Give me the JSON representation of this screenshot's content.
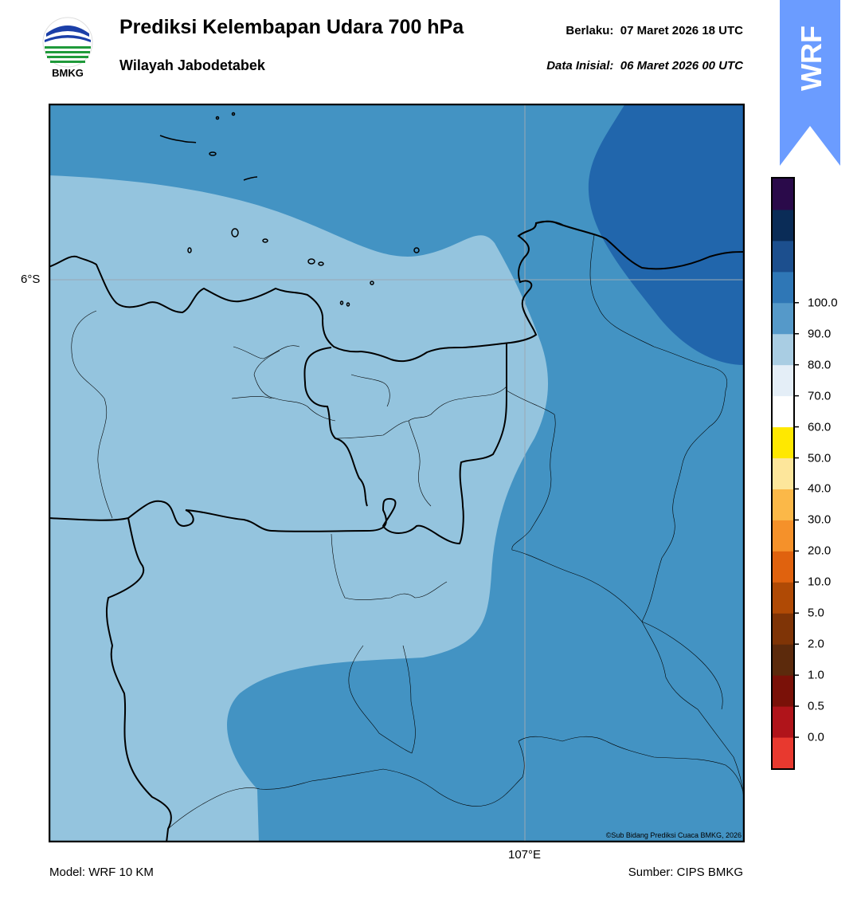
{
  "header": {
    "logo_text": "BMKG",
    "title": "Prediksi Kelembapan Udara 700 hPa",
    "subtitle": "Wilayah Jabodetabek",
    "valid_label": "Berlaku:",
    "valid_time": "07 Maret 2026 18 UTC",
    "init_label": "Data Inisial:",
    "init_time": "06 Maret 2026 00 UTC"
  },
  "badge": {
    "text": "WRF",
    "color": "#6b9cff"
  },
  "map": {
    "lat_label": "6°S",
    "lon_label": "107°E",
    "credit": "©Sub Bidang Prediksi Cuaca BMKG, 2026"
  },
  "footer": {
    "model": "Model: WRF 10 KM",
    "source": "Sumber: CIPS BMKG"
  },
  "colorbar": {
    "colors_bottom_to_top": [
      "#e8392f",
      "#b0141a",
      "#7a1108",
      "#5c2a0c",
      "#7f3406",
      "#b04a05",
      "#e0620e",
      "#f5912a",
      "#fbb848",
      "#fde69b",
      "#ffe800",
      "#ffffff",
      "#e4eef7",
      "#a9cde3",
      "#5599c9",
      "#2f77b6",
      "#1c4f8e",
      "#0a2c57",
      "#2a0a4a"
    ],
    "tick_labels": [
      "0.0",
      "0.5",
      "1.0",
      "2.0",
      "5.0",
      "10.0",
      "20.0",
      "30.0",
      "40.0",
      "50.0",
      "60.0",
      "70.0",
      "80.0",
      "90.0",
      "100.0"
    ]
  },
  "legend_colors": {
    "light_blue": "#94c4de",
    "medium_blue": "#4393c3",
    "dark_blue": "#2166ac"
  }
}
